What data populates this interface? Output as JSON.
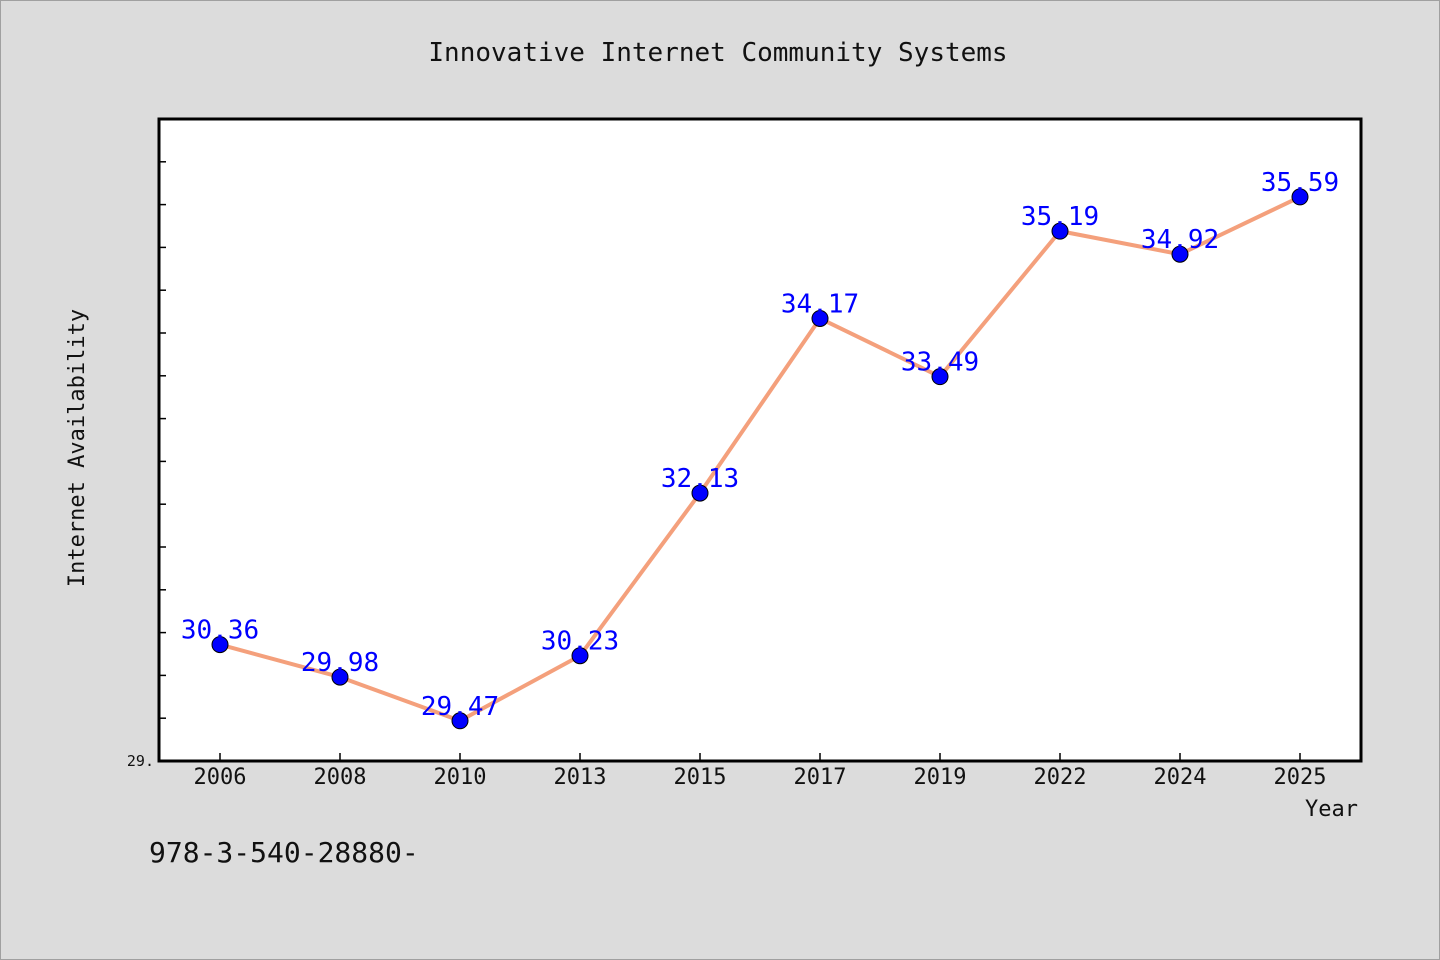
{
  "chart_data": {
    "type": "line",
    "title": "Innovative Internet Community Systems",
    "xlabel": "Year",
    "ylabel": "Internet Availability",
    "categories": [
      "2006",
      "2008",
      "2010",
      "2013",
      "2015",
      "2017",
      "2019",
      "2022",
      "2024",
      "2025"
    ],
    "series": [
      {
        "values": [
          30.36,
          29.98,
          29.47,
          30.23,
          32.13,
          34.17,
          33.49,
          35.19,
          34.92,
          35.59
        ]
      }
    ],
    "data_labels": [
      "30.36",
      "29.98",
      "29.47",
      "30.23",
      "32.13",
      "34.17",
      "33.49",
      "35.19",
      "34.92",
      "35.59"
    ],
    "ylim": [
      29.0,
      36.5
    ],
    "y_tick_label": "29.",
    "grid": false,
    "colors": {
      "line": "#f4a07c",
      "marker": "#0000ff",
      "data_label": "#0000ff",
      "background": "#dcdcdc",
      "plot_background": "#ffffff"
    }
  },
  "footer": {
    "isbn": "978-3-540-28880-"
  }
}
